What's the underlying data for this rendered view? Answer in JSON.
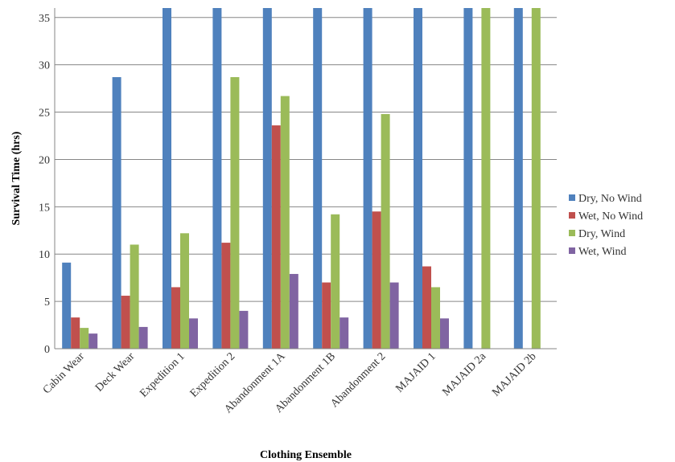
{
  "chart_data": {
    "type": "bar",
    "title": "",
    "xlabel": "Clothing Ensemble",
    "ylabel": "Survival Time (hrs)",
    "ylim": [
      0,
      36
    ],
    "yticks": [
      0,
      5,
      10,
      15,
      20,
      25,
      30,
      35
    ],
    "grid": true,
    "legend_position": "right",
    "categories": [
      "Cabin Wear",
      "Deck Wear",
      "Expedition 1",
      "Expedition 2",
      "Abandonment 1A",
      "Abandonment 1B",
      "Abandonment 2",
      "MAJAID 1",
      "MAJAID 2a",
      "MAJAID 2b"
    ],
    "series": [
      {
        "name": "Dry, No Wind",
        "color": "#4F81BD",
        "values": [
          9.1,
          28.7,
          36,
          36,
          36,
          36,
          36,
          36,
          36,
          36
        ]
      },
      {
        "name": "Wet, No Wind",
        "color": "#C0504D",
        "values": [
          3.3,
          5.6,
          6.5,
          11.2,
          23.6,
          7.0,
          14.5,
          8.7,
          null,
          null
        ]
      },
      {
        "name": "Dry, Wind",
        "color": "#9BBB59",
        "values": [
          2.2,
          11.0,
          12.2,
          28.7,
          26.7,
          14.2,
          24.8,
          6.5,
          36,
          36
        ]
      },
      {
        "name": "Wet, Wind",
        "color": "#8064A2",
        "values": [
          1.6,
          2.3,
          3.2,
          4.0,
          7.9,
          3.3,
          7.0,
          3.2,
          null,
          null
        ]
      }
    ]
  }
}
